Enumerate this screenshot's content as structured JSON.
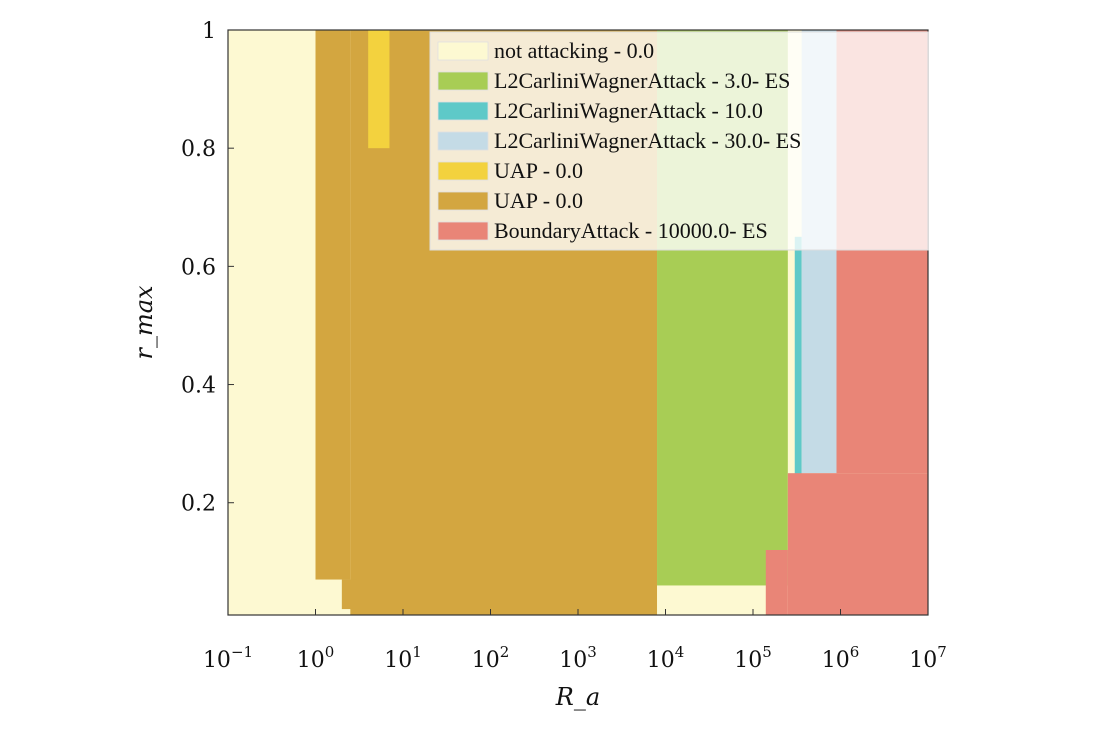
{
  "chart_data": {
    "type": "heatmap",
    "title": "",
    "xlabel": "R_a",
    "ylabel": "r_max",
    "x_scale": "log",
    "xlim": [
      0.1,
      10000000
    ],
    "ylim": [
      0.01,
      1.0
    ],
    "x_ticks": [
      {
        "value": 0.1,
        "label": "10",
        "exp": "−1"
      },
      {
        "value": 1,
        "label": "10",
        "exp": "0"
      },
      {
        "value": 10,
        "label": "10",
        "exp": "1"
      },
      {
        "value": 100,
        "label": "10",
        "exp": "2"
      },
      {
        "value": 1000,
        "label": "10",
        "exp": "3"
      },
      {
        "value": 10000,
        "label": "10",
        "exp": "4"
      },
      {
        "value": 100000,
        "label": "10",
        "exp": "5"
      },
      {
        "value": 1000000,
        "label": "10",
        "exp": "6"
      },
      {
        "value": 10000000,
        "label": "10",
        "exp": "7"
      }
    ],
    "y_ticks": [
      {
        "value": 0.2,
        "label": "0.2"
      },
      {
        "value": 0.4,
        "label": "0.4"
      },
      {
        "value": 0.6,
        "label": "0.6"
      },
      {
        "value": 0.8,
        "label": "0.8"
      },
      {
        "value": 1.0,
        "label": "1"
      }
    ],
    "legend_position": "top-right",
    "series": [
      {
        "name": "not attacking - 0.0",
        "color": "#fdf9d2"
      },
      {
        "name": "L2CarliniWagnerAttack - 3.0- ES",
        "color": "#a8cd55"
      },
      {
        "name": "L2CarliniWagnerAttack - 10.0",
        "color": "#5ec9c8"
      },
      {
        "name": "L2CarliniWagnerAttack - 30.0- ES",
        "color": "#c4dbe6"
      },
      {
        "name": "UAP - 0.0",
        "color": "#f3d23e"
      },
      {
        "name": "UAP - 0.0",
        "color": "#d3a640"
      },
      {
        "name": "BoundaryAttack - 10000.0- ES",
        "color": "#e98577"
      }
    ],
    "regions": [
      {
        "series": 0,
        "x0": 0.1,
        "x1": 10000000,
        "y0": 0.01,
        "y1": 1.0
      },
      {
        "series": 5,
        "x0": 2.5,
        "x1": 8000,
        "y0": 0.01,
        "y1": 1.0
      },
      {
        "series": 5,
        "x0": 1.0,
        "x1": 2.5,
        "y0": 0.07,
        "y1": 1.0
      },
      {
        "series": 5,
        "x0": 2.0,
        "x1": 3.0,
        "y0": 0.02,
        "y1": 0.07
      },
      {
        "series": 4,
        "x0": 4.0,
        "x1": 7.0,
        "y0": 0.8,
        "y1": 1.0
      },
      {
        "series": 1,
        "x0": 8000,
        "x1": 250000,
        "y0": 0.06,
        "y1": 1.0
      },
      {
        "series": 2,
        "x0": 300000,
        "x1": 360000,
        "y0": 0.2,
        "y1": 0.65
      },
      {
        "series": 3,
        "x0": 360000,
        "x1": 900000,
        "y0": 0.25,
        "y1": 1.0
      },
      {
        "series": 6,
        "x0": 250000,
        "x1": 10000000,
        "y0": 0.01,
        "y1": 0.25
      },
      {
        "series": 6,
        "x0": 900000,
        "x1": 10000000,
        "y0": 0.25,
        "y1": 1.0
      },
      {
        "series": 6,
        "x0": 140000,
        "x1": 250000,
        "y0": 0.01,
        "y1": 0.12
      }
    ]
  }
}
